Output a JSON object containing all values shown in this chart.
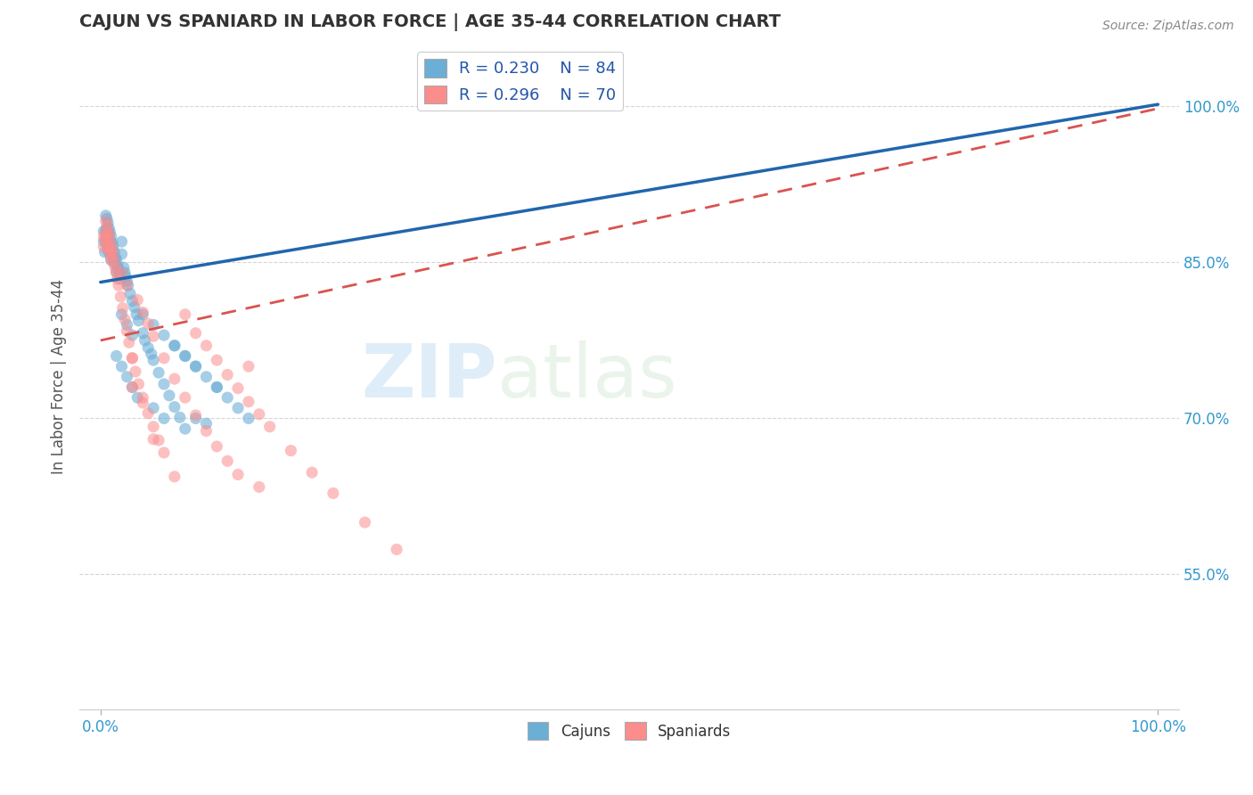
{
  "title": "CAJUN VS SPANIARD IN LABOR FORCE | AGE 35-44 CORRELATION CHART",
  "source": "Source: ZipAtlas.com",
  "ylabel": "In Labor Force | Age 35-44",
  "xlim": [
    -0.02,
    1.02
  ],
  "ylim": [
    0.42,
    1.06
  ],
  "yticks": [
    0.55,
    0.7,
    0.85,
    1.0
  ],
  "ytick_labels": [
    "55.0%",
    "70.0%",
    "85.0%",
    "100.0%"
  ],
  "xtick_labels": [
    "0.0%",
    "100.0%"
  ],
  "xticks": [
    0.0,
    1.0
  ],
  "legend_r1": "R = 0.230",
  "legend_n1": "N = 84",
  "legend_r2": "R = 0.296",
  "legend_n2": "N = 70",
  "color_cajun": "#6baed6",
  "color_spaniard": "#fc8d8d",
  "color_line_cajun": "#2166ac",
  "color_line_spaniard": "#d9534f",
  "line_cajun_x0": 0.0,
  "line_cajun_y0": 0.831,
  "line_cajun_x1": 1.0,
  "line_cajun_y1": 1.002,
  "line_spaniard_x0": 0.0,
  "line_spaniard_y0": 0.775,
  "line_spaniard_x1": 1.0,
  "line_spaniard_y1": 0.998,
  "cajun_x": [
    0.003,
    0.003,
    0.004,
    0.005,
    0.005,
    0.005,
    0.006,
    0.006,
    0.006,
    0.007,
    0.007,
    0.007,
    0.008,
    0.008,
    0.008,
    0.009,
    0.009,
    0.009,
    0.01,
    0.01,
    0.01,
    0.011,
    0.011,
    0.012,
    0.012,
    0.013,
    0.013,
    0.014,
    0.015,
    0.015,
    0.016,
    0.017,
    0.018,
    0.019,
    0.02,
    0.02,
    0.022,
    0.023,
    0.024,
    0.025,
    0.026,
    0.028,
    0.03,
    0.032,
    0.034,
    0.036,
    0.04,
    0.042,
    0.045,
    0.048,
    0.05,
    0.055,
    0.06,
    0.065,
    0.07,
    0.075,
    0.08,
    0.09,
    0.1,
    0.11,
    0.12,
    0.13,
    0.14,
    0.015,
    0.02,
    0.025,
    0.03,
    0.035,
    0.05,
    0.06,
    0.07,
    0.08,
    0.09,
    0.1,
    0.11,
    0.02,
    0.025,
    0.03,
    0.04,
    0.05,
    0.06,
    0.07,
    0.08,
    0.09
  ],
  "cajun_y": [
    0.87,
    0.88,
    0.86,
    0.895,
    0.88,
    0.87,
    0.892,
    0.882,
    0.872,
    0.888,
    0.878,
    0.862,
    0.883,
    0.873,
    0.862,
    0.879,
    0.869,
    0.858,
    0.875,
    0.864,
    0.853,
    0.869,
    0.858,
    0.865,
    0.854,
    0.86,
    0.849,
    0.855,
    0.852,
    0.841,
    0.847,
    0.843,
    0.838,
    0.834,
    0.87,
    0.858,
    0.845,
    0.84,
    0.836,
    0.832,
    0.828,
    0.82,
    0.813,
    0.807,
    0.8,
    0.794,
    0.782,
    0.775,
    0.768,
    0.762,
    0.756,
    0.744,
    0.733,
    0.722,
    0.711,
    0.701,
    0.69,
    0.7,
    0.695,
    0.73,
    0.72,
    0.71,
    0.7,
    0.76,
    0.75,
    0.74,
    0.73,
    0.72,
    0.71,
    0.7,
    0.77,
    0.76,
    0.75,
    0.74,
    0.73,
    0.8,
    0.79,
    0.78,
    0.8,
    0.79,
    0.78,
    0.77,
    0.76,
    0.75
  ],
  "spaniard_x": [
    0.003,
    0.003,
    0.004,
    0.005,
    0.005,
    0.006,
    0.006,
    0.007,
    0.007,
    0.008,
    0.008,
    0.009,
    0.009,
    0.01,
    0.01,
    0.011,
    0.012,
    0.013,
    0.014,
    0.015,
    0.016,
    0.017,
    0.019,
    0.021,
    0.023,
    0.025,
    0.027,
    0.03,
    0.033,
    0.036,
    0.04,
    0.045,
    0.05,
    0.055,
    0.06,
    0.07,
    0.08,
    0.09,
    0.1,
    0.11,
    0.12,
    0.13,
    0.14,
    0.15,
    0.16,
    0.18,
    0.2,
    0.22,
    0.25,
    0.28,
    0.02,
    0.025,
    0.03,
    0.035,
    0.04,
    0.045,
    0.05,
    0.06,
    0.07,
    0.08,
    0.09,
    0.1,
    0.11,
    0.12,
    0.13,
    0.14,
    0.15,
    0.03,
    0.04,
    0.05
  ],
  "spaniard_y": [
    0.875,
    0.865,
    0.872,
    0.89,
    0.878,
    0.885,
    0.872,
    0.88,
    0.865,
    0.876,
    0.862,
    0.871,
    0.858,
    0.866,
    0.852,
    0.862,
    0.857,
    0.851,
    0.845,
    0.84,
    0.834,
    0.828,
    0.817,
    0.806,
    0.795,
    0.784,
    0.773,
    0.758,
    0.745,
    0.733,
    0.72,
    0.705,
    0.692,
    0.679,
    0.667,
    0.644,
    0.8,
    0.782,
    0.77,
    0.756,
    0.742,
    0.729,
    0.716,
    0.704,
    0.692,
    0.669,
    0.648,
    0.628,
    0.6,
    0.574,
    0.84,
    0.828,
    0.758,
    0.814,
    0.802,
    0.791,
    0.779,
    0.758,
    0.738,
    0.72,
    0.703,
    0.688,
    0.673,
    0.659,
    0.646,
    0.75,
    0.634,
    0.73,
    0.715,
    0.68
  ]
}
